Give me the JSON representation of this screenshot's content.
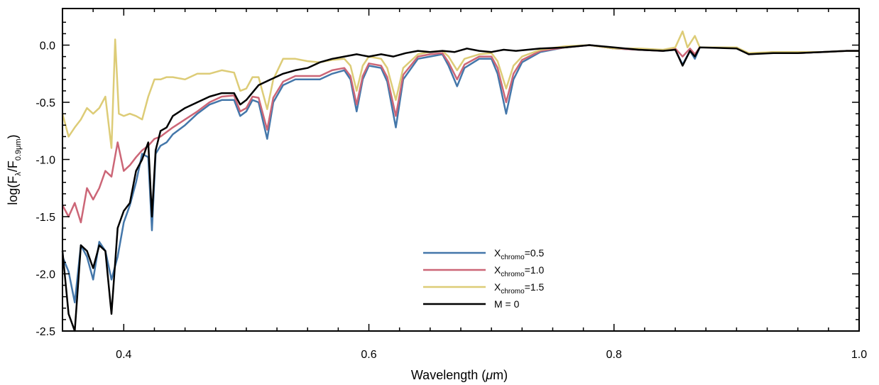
{
  "chart_data": {
    "type": "line",
    "xlabel": "Wavelength (μm)",
    "ylabel": "log(Fλ/F0.9μm)",
    "xlim": [
      0.35,
      1.0
    ],
    "ylim": [
      -2.5,
      0.32
    ],
    "x_ticks": [
      "0.4",
      "0.6",
      "0.8",
      "1.0"
    ],
    "y_ticks": [
      "0.0",
      "-0.5",
      "-1.0",
      "-1.5",
      "-2.0",
      "-2.5"
    ],
    "legend_position": "center-bottom",
    "grid": false,
    "series": [
      {
        "name": "Xchromo=0.5",
        "label_main": "X",
        "label_sub": "chromo",
        "label_suffix": "=0.5",
        "color": "#4477aa",
        "points": [
          [
            0.35,
            -1.85
          ],
          [
            0.355,
            -1.98
          ],
          [
            0.36,
            -2.25
          ],
          [
            0.365,
            -1.75
          ],
          [
            0.37,
            -1.85
          ],
          [
            0.375,
            -2.05
          ],
          [
            0.38,
            -1.72
          ],
          [
            0.385,
            -1.8
          ],
          [
            0.39,
            -2.05
          ],
          [
            0.395,
            -1.85
          ],
          [
            0.4,
            -1.55
          ],
          [
            0.405,
            -1.4
          ],
          [
            0.41,
            -1.2
          ],
          [
            0.415,
            -0.95
          ],
          [
            0.42,
            -0.98
          ],
          [
            0.423,
            -1.62
          ],
          [
            0.426,
            -0.95
          ],
          [
            0.43,
            -0.88
          ],
          [
            0.435,
            -0.85
          ],
          [
            0.44,
            -0.78
          ],
          [
            0.45,
            -0.7
          ],
          [
            0.46,
            -0.6
          ],
          [
            0.47,
            -0.52
          ],
          [
            0.48,
            -0.48
          ],
          [
            0.49,
            -0.48
          ],
          [
            0.495,
            -0.62
          ],
          [
            0.5,
            -0.58
          ],
          [
            0.505,
            -0.48
          ],
          [
            0.51,
            -0.5
          ],
          [
            0.517,
            -0.82
          ],
          [
            0.522,
            -0.5
          ],
          [
            0.53,
            -0.35
          ],
          [
            0.54,
            -0.3
          ],
          [
            0.55,
            -0.3
          ],
          [
            0.56,
            -0.3
          ],
          [
            0.57,
            -0.25
          ],
          [
            0.58,
            -0.22
          ],
          [
            0.585,
            -0.3
          ],
          [
            0.59,
            -0.58
          ],
          [
            0.595,
            -0.3
          ],
          [
            0.6,
            -0.18
          ],
          [
            0.61,
            -0.2
          ],
          [
            0.615,
            -0.32
          ],
          [
            0.622,
            -0.72
          ],
          [
            0.628,
            -0.3
          ],
          [
            0.64,
            -0.12
          ],
          [
            0.65,
            -0.1
          ],
          [
            0.66,
            -0.08
          ],
          [
            0.665,
            -0.18
          ],
          [
            0.672,
            -0.36
          ],
          [
            0.678,
            -0.2
          ],
          [
            0.69,
            -0.12
          ],
          [
            0.7,
            -0.12
          ],
          [
            0.705,
            -0.25
          ],
          [
            0.712,
            -0.6
          ],
          [
            0.718,
            -0.3
          ],
          [
            0.725,
            -0.15
          ],
          [
            0.74,
            -0.06
          ],
          [
            0.76,
            -0.02
          ],
          [
            0.78,
            0.0
          ],
          [
            0.8,
            -0.03
          ],
          [
            0.82,
            -0.04
          ],
          [
            0.84,
            -0.05
          ],
          [
            0.85,
            -0.04
          ],
          [
            0.856,
            -0.17
          ],
          [
            0.862,
            -0.05
          ],
          [
            0.866,
            -0.12
          ],
          [
            0.87,
            -0.02
          ],
          [
            0.9,
            -0.02
          ],
          [
            0.91,
            -0.08
          ],
          [
            0.93,
            -0.06
          ],
          [
            0.95,
            -0.07
          ],
          [
            0.97,
            -0.06
          ],
          [
            0.99,
            -0.05
          ],
          [
            1.0,
            -0.05
          ]
        ]
      },
      {
        "name": "Xchromo=1.0",
        "label_main": "X",
        "label_sub": "chromo",
        "label_suffix": "=1.0",
        "color": "#cc6677",
        "points": [
          [
            0.35,
            -1.4
          ],
          [
            0.355,
            -1.5
          ],
          [
            0.36,
            -1.38
          ],
          [
            0.365,
            -1.55
          ],
          [
            0.37,
            -1.25
          ],
          [
            0.375,
            -1.35
          ],
          [
            0.38,
            -1.25
          ],
          [
            0.385,
            -1.1
          ],
          [
            0.39,
            -1.15
          ],
          [
            0.395,
            -0.85
          ],
          [
            0.4,
            -1.1
          ],
          [
            0.405,
            -1.05
          ],
          [
            0.41,
            -0.98
          ],
          [
            0.415,
            -0.92
          ],
          [
            0.42,
            -0.88
          ],
          [
            0.425,
            -0.82
          ],
          [
            0.43,
            -0.8
          ],
          [
            0.44,
            -0.72
          ],
          [
            0.45,
            -0.65
          ],
          [
            0.46,
            -0.58
          ],
          [
            0.47,
            -0.5
          ],
          [
            0.48,
            -0.45
          ],
          [
            0.49,
            -0.44
          ],
          [
            0.495,
            -0.58
          ],
          [
            0.5,
            -0.55
          ],
          [
            0.505,
            -0.45
          ],
          [
            0.51,
            -0.46
          ],
          [
            0.517,
            -0.74
          ],
          [
            0.522,
            -0.46
          ],
          [
            0.53,
            -0.32
          ],
          [
            0.54,
            -0.27
          ],
          [
            0.55,
            -0.27
          ],
          [
            0.56,
            -0.27
          ],
          [
            0.57,
            -0.22
          ],
          [
            0.58,
            -0.2
          ],
          [
            0.585,
            -0.27
          ],
          [
            0.59,
            -0.52
          ],
          [
            0.595,
            -0.27
          ],
          [
            0.6,
            -0.16
          ],
          [
            0.61,
            -0.18
          ],
          [
            0.615,
            -0.28
          ],
          [
            0.622,
            -0.62
          ],
          [
            0.628,
            -0.26
          ],
          [
            0.64,
            -0.1
          ],
          [
            0.65,
            -0.08
          ],
          [
            0.66,
            -0.07
          ],
          [
            0.665,
            -0.15
          ],
          [
            0.672,
            -0.3
          ],
          [
            0.678,
            -0.17
          ],
          [
            0.69,
            -0.1
          ],
          [
            0.7,
            -0.1
          ],
          [
            0.705,
            -0.2
          ],
          [
            0.712,
            -0.5
          ],
          [
            0.718,
            -0.25
          ],
          [
            0.725,
            -0.13
          ],
          [
            0.74,
            -0.05
          ],
          [
            0.76,
            -0.02
          ],
          [
            0.78,
            0.0
          ],
          [
            0.8,
            -0.03
          ],
          [
            0.82,
            -0.04
          ],
          [
            0.84,
            -0.05
          ],
          [
            0.85,
            -0.03
          ],
          [
            0.856,
            -0.1
          ],
          [
            0.862,
            -0.03
          ],
          [
            0.866,
            -0.08
          ],
          [
            0.87,
            -0.02
          ],
          [
            0.9,
            -0.02
          ],
          [
            0.91,
            -0.08
          ],
          [
            0.93,
            -0.06
          ],
          [
            0.95,
            -0.07
          ],
          [
            0.97,
            -0.06
          ],
          [
            0.99,
            -0.05
          ],
          [
            1.0,
            -0.05
          ]
        ]
      },
      {
        "name": "Xchromo=1.5",
        "label_main": "X",
        "label_sub": "chromo",
        "label_suffix": "=1.5",
        "color": "#ddcc77",
        "points": [
          [
            0.35,
            -0.6
          ],
          [
            0.355,
            -0.8
          ],
          [
            0.36,
            -0.72
          ],
          [
            0.365,
            -0.65
          ],
          [
            0.37,
            -0.55
          ],
          [
            0.375,
            -0.6
          ],
          [
            0.38,
            -0.55
          ],
          [
            0.385,
            -0.45
          ],
          [
            0.39,
            -0.9
          ],
          [
            0.393,
            0.05
          ],
          [
            0.396,
            -0.6
          ],
          [
            0.4,
            -0.62
          ],
          [
            0.405,
            -0.6
          ],
          [
            0.41,
            -0.62
          ],
          [
            0.415,
            -0.65
          ],
          [
            0.42,
            -0.45
          ],
          [
            0.425,
            -0.3
          ],
          [
            0.43,
            -0.3
          ],
          [
            0.435,
            -0.28
          ],
          [
            0.44,
            -0.28
          ],
          [
            0.45,
            -0.3
          ],
          [
            0.46,
            -0.25
          ],
          [
            0.47,
            -0.25
          ],
          [
            0.48,
            -0.22
          ],
          [
            0.49,
            -0.24
          ],
          [
            0.495,
            -0.4
          ],
          [
            0.5,
            -0.38
          ],
          [
            0.505,
            -0.28
          ],
          [
            0.51,
            -0.28
          ],
          [
            0.517,
            -0.56
          ],
          [
            0.522,
            -0.3
          ],
          [
            0.53,
            -0.12
          ],
          [
            0.54,
            -0.12
          ],
          [
            0.55,
            -0.14
          ],
          [
            0.56,
            -0.15
          ],
          [
            0.57,
            -0.13
          ],
          [
            0.58,
            -0.12
          ],
          [
            0.585,
            -0.18
          ],
          [
            0.59,
            -0.4
          ],
          [
            0.595,
            -0.18
          ],
          [
            0.6,
            -0.1
          ],
          [
            0.61,
            -0.12
          ],
          [
            0.615,
            -0.2
          ],
          [
            0.622,
            -0.48
          ],
          [
            0.628,
            -0.2
          ],
          [
            0.64,
            -0.08
          ],
          [
            0.65,
            -0.06
          ],
          [
            0.66,
            -0.05
          ],
          [
            0.665,
            -0.1
          ],
          [
            0.672,
            -0.22
          ],
          [
            0.678,
            -0.12
          ],
          [
            0.69,
            -0.08
          ],
          [
            0.7,
            -0.07
          ],
          [
            0.705,
            -0.14
          ],
          [
            0.712,
            -0.38
          ],
          [
            0.718,
            -0.18
          ],
          [
            0.725,
            -0.1
          ],
          [
            0.74,
            -0.04
          ],
          [
            0.76,
            -0.01
          ],
          [
            0.78,
            0.0
          ],
          [
            0.8,
            -0.03
          ],
          [
            0.82,
            -0.03
          ],
          [
            0.84,
            -0.04
          ],
          [
            0.85,
            -0.02
          ],
          [
            0.856,
            0.12
          ],
          [
            0.86,
            -0.02
          ],
          [
            0.866,
            0.08
          ],
          [
            0.87,
            -0.02
          ],
          [
            0.9,
            -0.02
          ],
          [
            0.91,
            -0.07
          ],
          [
            0.93,
            -0.06
          ],
          [
            0.95,
            -0.06
          ],
          [
            0.97,
            -0.06
          ],
          [
            0.99,
            -0.05
          ],
          [
            1.0,
            -0.05
          ]
        ]
      },
      {
        "name": "M = 0",
        "label_main": "M = 0",
        "label_sub": "",
        "label_suffix": "",
        "color": "#000000",
        "points": [
          [
            0.35,
            -1.8
          ],
          [
            0.355,
            -2.35
          ],
          [
            0.36,
            -2.5
          ],
          [
            0.365,
            -1.75
          ],
          [
            0.37,
            -1.8
          ],
          [
            0.375,
            -1.95
          ],
          [
            0.38,
            -1.75
          ],
          [
            0.385,
            -1.8
          ],
          [
            0.39,
            -2.35
          ],
          [
            0.395,
            -1.6
          ],
          [
            0.4,
            -1.45
          ],
          [
            0.405,
            -1.38
          ],
          [
            0.41,
            -1.1
          ],
          [
            0.415,
            -1.0
          ],
          [
            0.42,
            -0.85
          ],
          [
            0.423,
            -1.5
          ],
          [
            0.426,
            -0.92
          ],
          [
            0.43,
            -0.75
          ],
          [
            0.435,
            -0.72
          ],
          [
            0.44,
            -0.62
          ],
          [
            0.45,
            -0.55
          ],
          [
            0.46,
            -0.5
          ],
          [
            0.47,
            -0.45
          ],
          [
            0.48,
            -0.42
          ],
          [
            0.49,
            -0.42
          ],
          [
            0.495,
            -0.52
          ],
          [
            0.5,
            -0.48
          ],
          [
            0.51,
            -0.35
          ],
          [
            0.52,
            -0.3
          ],
          [
            0.53,
            -0.25
          ],
          [
            0.54,
            -0.22
          ],
          [
            0.55,
            -0.2
          ],
          [
            0.56,
            -0.15
          ],
          [
            0.57,
            -0.12
          ],
          [
            0.58,
            -0.1
          ],
          [
            0.59,
            -0.08
          ],
          [
            0.6,
            -0.1
          ],
          [
            0.61,
            -0.08
          ],
          [
            0.62,
            -0.1
          ],
          [
            0.63,
            -0.07
          ],
          [
            0.64,
            -0.05
          ],
          [
            0.65,
            -0.06
          ],
          [
            0.66,
            -0.05
          ],
          [
            0.67,
            -0.06
          ],
          [
            0.68,
            -0.03
          ],
          [
            0.69,
            -0.05
          ],
          [
            0.7,
            -0.06
          ],
          [
            0.71,
            -0.04
          ],
          [
            0.72,
            -0.05
          ],
          [
            0.74,
            -0.03
          ],
          [
            0.76,
            -0.02
          ],
          [
            0.78,
            0.0
          ],
          [
            0.8,
            -0.02
          ],
          [
            0.82,
            -0.04
          ],
          [
            0.84,
            -0.05
          ],
          [
            0.85,
            -0.04
          ],
          [
            0.856,
            -0.18
          ],
          [
            0.862,
            -0.05
          ],
          [
            0.866,
            -0.1
          ],
          [
            0.87,
            -0.02
          ],
          [
            0.9,
            -0.03
          ],
          [
            0.91,
            -0.08
          ],
          [
            0.93,
            -0.07
          ],
          [
            0.95,
            -0.07
          ],
          [
            0.97,
            -0.06
          ],
          [
            0.99,
            -0.05
          ],
          [
            1.0,
            -0.05
          ]
        ]
      }
    ]
  }
}
